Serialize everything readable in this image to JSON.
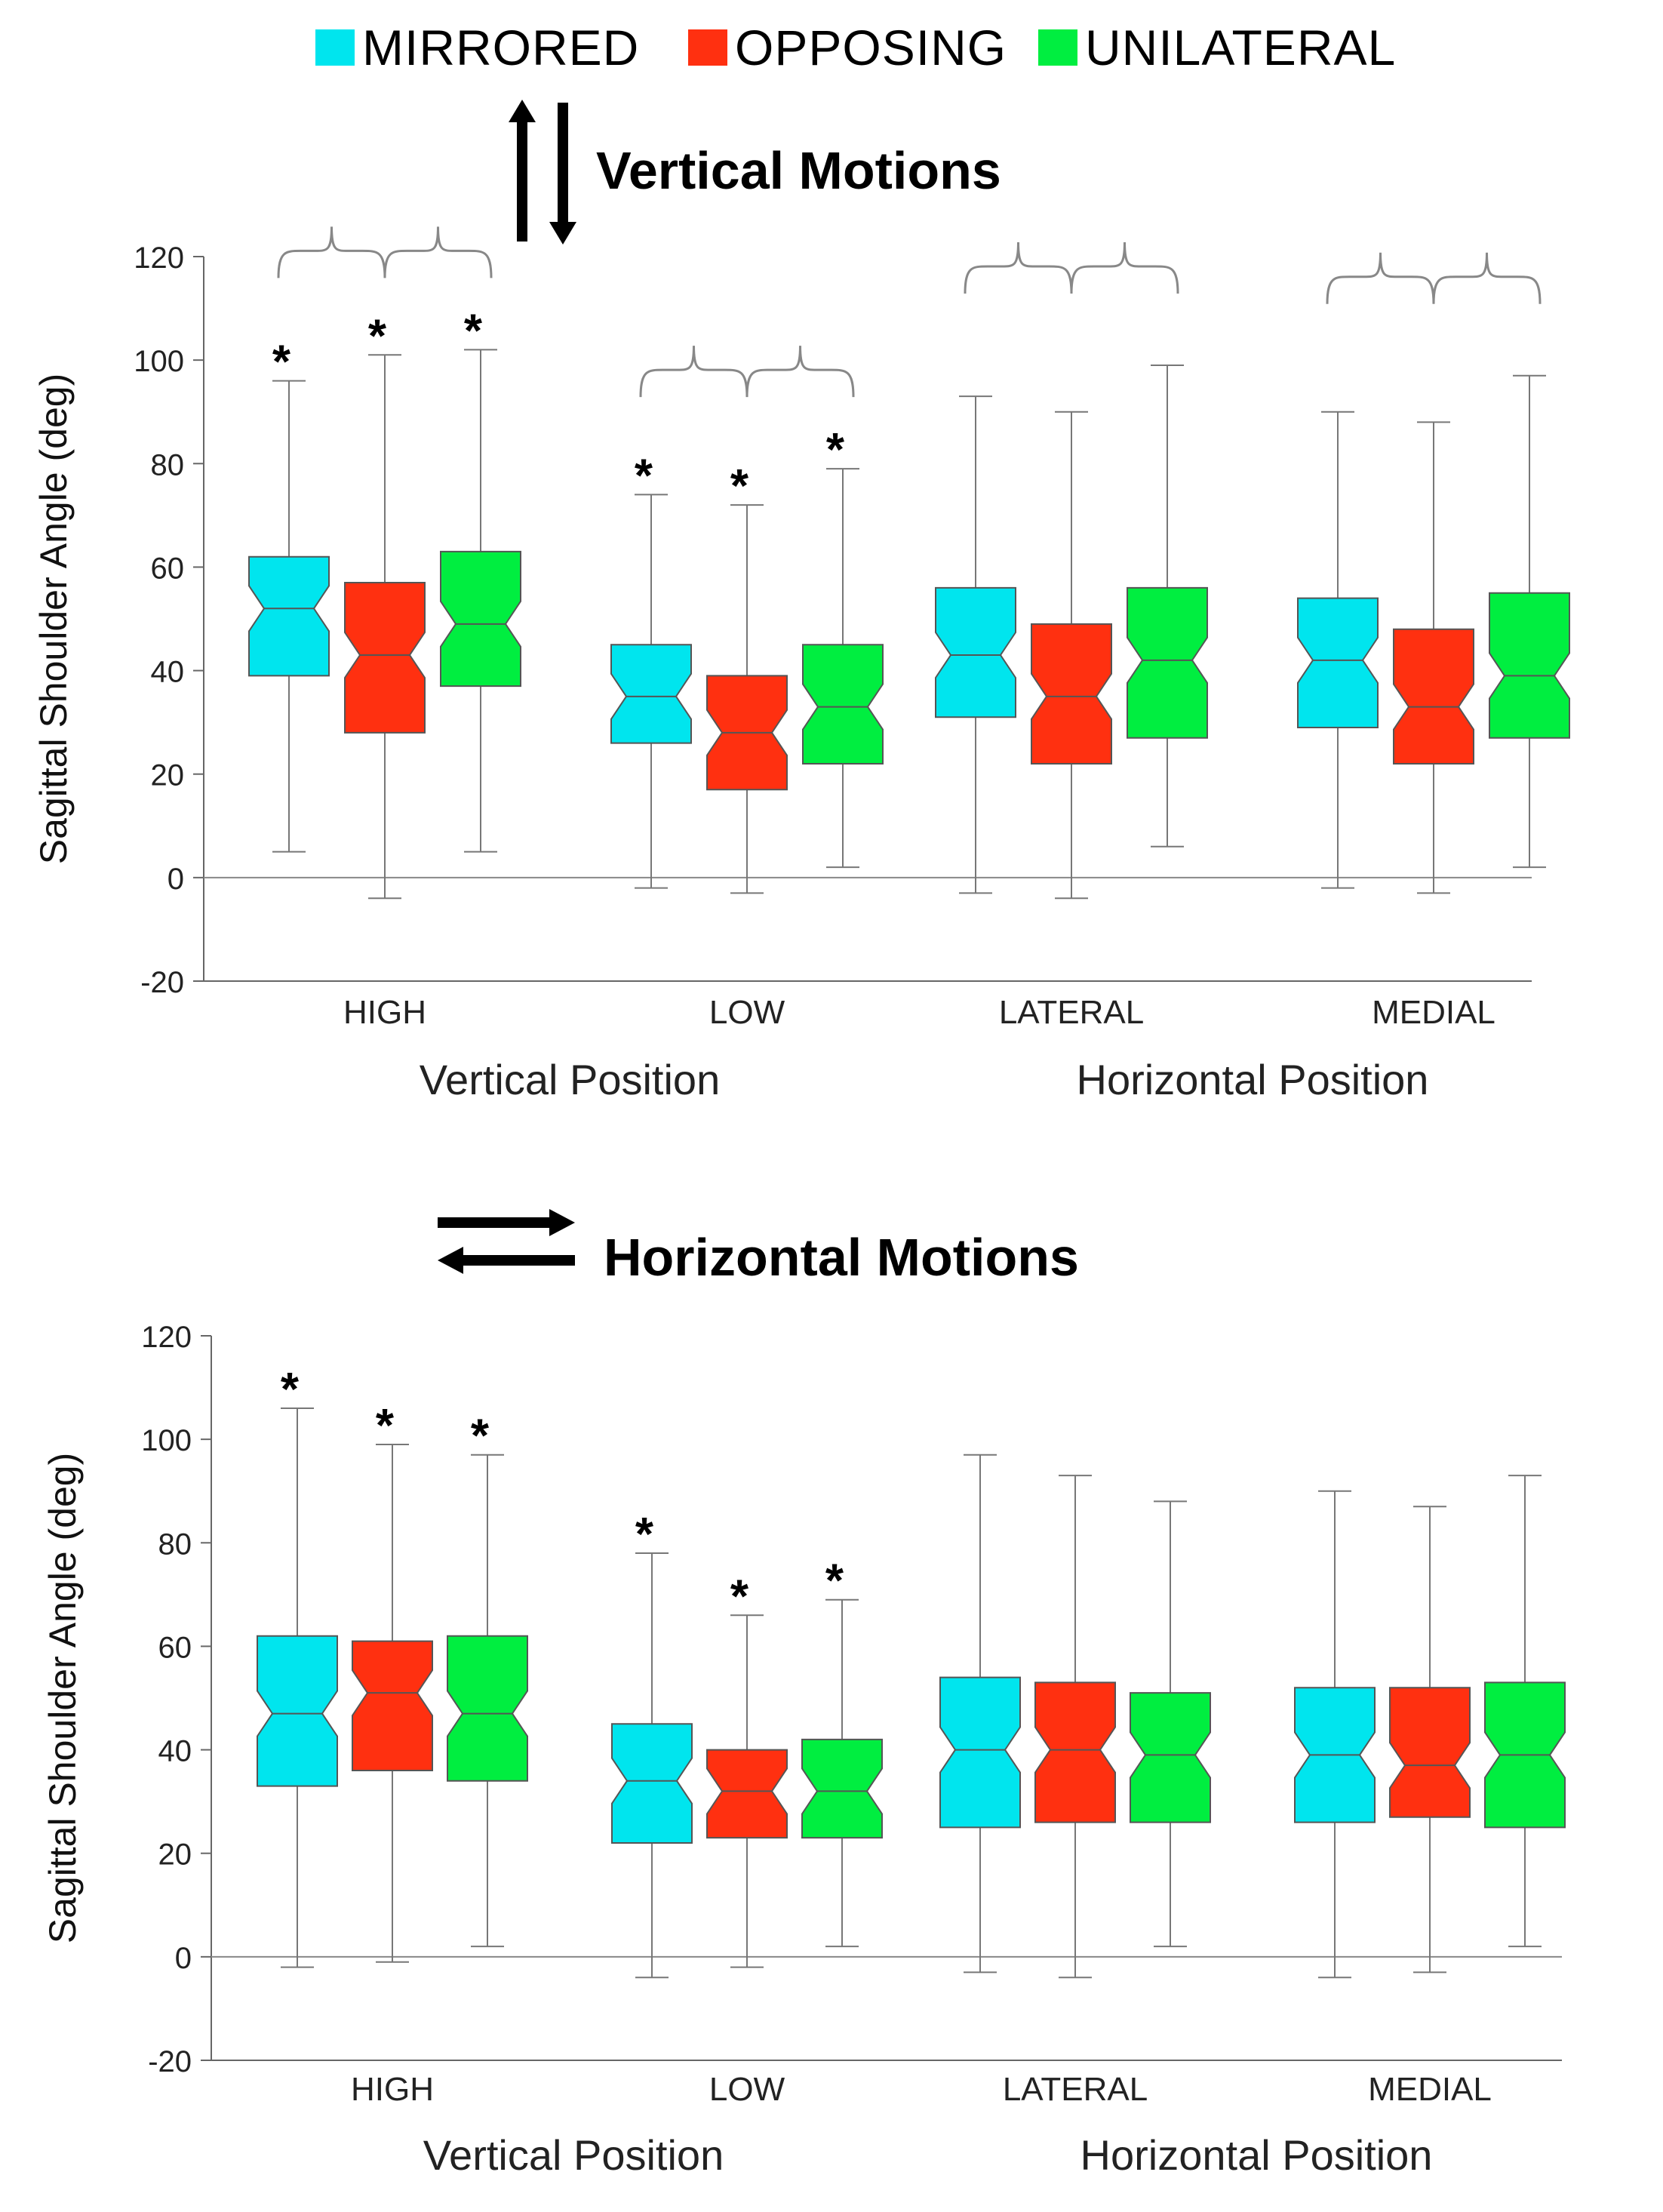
{
  "legend": {
    "items": [
      {
        "label": "MIRRORED",
        "color": "#00e5ee"
      },
      {
        "label": "OPPOSING",
        "color": "#ff3010"
      },
      {
        "label": "UNILATERAL",
        "color": "#00ee40"
      }
    ]
  },
  "panels": {
    "vertical": {
      "title": "Vertical Motions",
      "arrow_icon": "vertical-arrows-icon"
    },
    "horizontal": {
      "title": "Horizontal Motions",
      "arrow_icon": "horizontal-arrows-icon"
    }
  },
  "significance_marker": "*",
  "chart_data": [
    {
      "type": "boxplot",
      "notched": true,
      "title": "Vertical Motions",
      "ylabel": "Sagittal Shoulder Angle (deg)",
      "ylim": [
        -20,
        120
      ],
      "yticks": [
        -20,
        0,
        20,
        40,
        60,
        80,
        100,
        120
      ],
      "categories": [
        "HIGH",
        "LOW",
        "LATERAL",
        "MEDIAL"
      ],
      "category_groups": [
        {
          "label": "Vertical Position",
          "categories": [
            "HIGH",
            "LOW"
          ]
        },
        {
          "label": "Horizontal Position",
          "categories": [
            "LATERAL",
            "MEDIAL"
          ]
        }
      ],
      "series": [
        {
          "name": "MIRRORED",
          "color": "#00e5ee",
          "boxes": [
            {
              "min": 5,
              "q1": 39,
              "median": 52,
              "q3": 62,
              "max": 96,
              "significant": true
            },
            {
              "min": -2,
              "q1": 26,
              "median": 35,
              "q3": 45,
              "max": 74,
              "significant": true
            },
            {
              "min": -3,
              "q1": 31,
              "median": 43,
              "q3": 56,
              "max": 93,
              "significant": false
            },
            {
              "min": -2,
              "q1": 29,
              "median": 42,
              "q3": 54,
              "max": 90,
              "significant": false
            }
          ]
        },
        {
          "name": "OPPOSING",
          "color": "#ff3010",
          "boxes": [
            {
              "min": -4,
              "q1": 28,
              "median": 43,
              "q3": 57,
              "max": 101,
              "significant": true
            },
            {
              "min": -3,
              "q1": 17,
              "median": 28,
              "q3": 39,
              "max": 72,
              "significant": true
            },
            {
              "min": -4,
              "q1": 22,
              "median": 35,
              "q3": 49,
              "max": 90,
              "significant": false
            },
            {
              "min": -3,
              "q1": 22,
              "median": 33,
              "q3": 48,
              "max": 88,
              "significant": false
            }
          ]
        },
        {
          "name": "UNILATERAL",
          "color": "#00ee40",
          "boxes": [
            {
              "min": 5,
              "q1": 37,
              "median": 49,
              "q3": 63,
              "max": 102,
              "significant": true
            },
            {
              "min": 2,
              "q1": 22,
              "median": 33,
              "q3": 45,
              "max": 79,
              "significant": true
            },
            {
              "min": 6,
              "q1": 27,
              "median": 42,
              "q3": 56,
              "max": 99,
              "significant": false
            },
            {
              "min": 2,
              "q1": 27,
              "median": 39,
              "q3": 55,
              "max": 97,
              "significant": false
            }
          ]
        }
      ],
      "braces": [
        "HIGH",
        "LOW",
        "LATERAL",
        "MEDIAL"
      ]
    },
    {
      "type": "boxplot",
      "notched": true,
      "title": "Horizontal Motions",
      "ylabel": "Sagittal Shoulder Angle (deg)",
      "ylim": [
        -20,
        120
      ],
      "yticks": [
        -20,
        0,
        20,
        40,
        60,
        80,
        100,
        120
      ],
      "categories": [
        "HIGH",
        "LOW",
        "LATERAL",
        "MEDIAL"
      ],
      "category_groups": [
        {
          "label": "Vertical Position",
          "categories": [
            "HIGH",
            "LOW"
          ]
        },
        {
          "label": "Horizontal Position",
          "categories": [
            "LATERAL",
            "MEDIAL"
          ]
        }
      ],
      "series": [
        {
          "name": "MIRRORED",
          "color": "#00e5ee",
          "boxes": [
            {
              "min": -2,
              "q1": 33,
              "median": 47,
              "q3": 62,
              "max": 106,
              "significant": true
            },
            {
              "min": -4,
              "q1": 22,
              "median": 34,
              "q3": 45,
              "max": 78,
              "significant": true
            },
            {
              "min": -3,
              "q1": 25,
              "median": 40,
              "q3": 54,
              "max": 97,
              "significant": false
            },
            {
              "min": -4,
              "q1": 26,
              "median": 39,
              "q3": 52,
              "max": 90,
              "significant": false
            }
          ]
        },
        {
          "name": "OPPOSING",
          "color": "#ff3010",
          "boxes": [
            {
              "min": -1,
              "q1": 36,
              "median": 51,
              "q3": 61,
              "max": 99,
              "significant": true
            },
            {
              "min": -2,
              "q1": 23,
              "median": 32,
              "q3": 40,
              "max": 66,
              "significant": true
            },
            {
              "min": -4,
              "q1": 26,
              "median": 40,
              "q3": 53,
              "max": 93,
              "significant": false
            },
            {
              "min": -3,
              "q1": 27,
              "median": 37,
              "q3": 52,
              "max": 87,
              "significant": false
            }
          ]
        },
        {
          "name": "UNILATERAL",
          "color": "#00ee40",
          "boxes": [
            {
              "min": 2,
              "q1": 34,
              "median": 47,
              "q3": 62,
              "max": 97,
              "significant": true
            },
            {
              "min": 2,
              "q1": 23,
              "median": 32,
              "q3": 42,
              "max": 69,
              "significant": true
            },
            {
              "min": 2,
              "q1": 26,
              "median": 39,
              "q3": 51,
              "max": 88,
              "significant": false
            },
            {
              "min": 2,
              "q1": 25,
              "median": 39,
              "q3": 53,
              "max": 93,
              "significant": false
            }
          ]
        }
      ],
      "braces": []
    }
  ]
}
